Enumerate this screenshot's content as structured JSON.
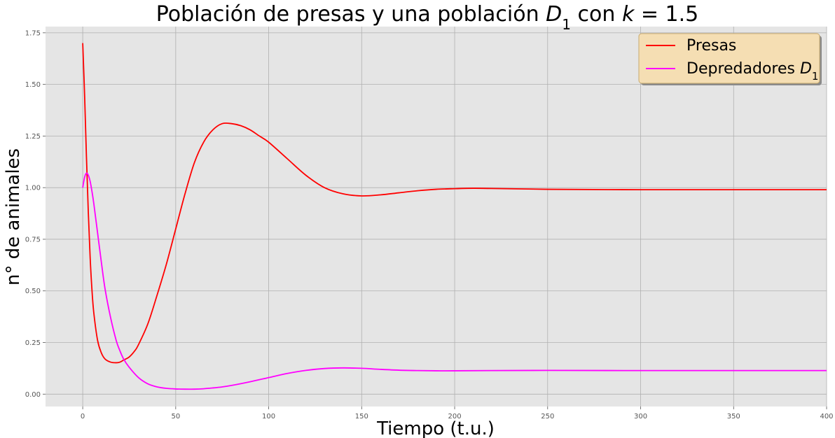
{
  "chart_data": {
    "type": "line",
    "title": {
      "prefix": "Población de presas y una población ",
      "var": "D",
      "sub": "1",
      "mid": " con ",
      "kvar": "k",
      "eq": " = 1.5"
    },
    "xlabel": "Tiempo (t.u.)",
    "ylabel": "n° de animales",
    "xlim": [
      -20,
      400
    ],
    "ylim": [
      -0.06,
      1.78
    ],
    "xticks": [
      "0",
      "50",
      "100",
      "150",
      "200",
      "250",
      "300",
      "350",
      "400"
    ],
    "yticks": [
      "0.00",
      "0.25",
      "0.50",
      "0.75",
      "1.00",
      "1.25",
      "1.50",
      "1.75"
    ],
    "grid": true,
    "background": "#e5e5e5",
    "legend": {
      "placement": "top-right",
      "background": "#f5deb3",
      "border": "#c8a96e"
    },
    "series": [
      {
        "name": "Presas",
        "name_sub": "",
        "color": "#ff0000",
        "x": [
          0,
          1,
          2,
          3,
          4,
          5,
          6,
          8,
          10,
          12,
          15,
          18,
          20,
          22,
          25,
          28,
          30,
          35,
          40,
          45,
          50,
          55,
          60,
          65,
          70,
          75,
          80,
          85,
          90,
          95,
          100,
          110,
          120,
          130,
          140,
          150,
          160,
          170,
          180,
          190,
          200,
          210,
          220,
          250,
          300,
          350,
          400
        ],
        "y": [
          1.7,
          1.45,
          1.15,
          0.88,
          0.66,
          0.5,
          0.39,
          0.26,
          0.2,
          0.17,
          0.155,
          0.152,
          0.155,
          0.165,
          0.18,
          0.21,
          0.24,
          0.34,
          0.48,
          0.63,
          0.8,
          0.97,
          1.12,
          1.22,
          1.28,
          1.31,
          1.31,
          1.3,
          1.28,
          1.25,
          1.22,
          1.14,
          1.06,
          1.0,
          0.97,
          0.96,
          0.965,
          0.975,
          0.985,
          0.992,
          0.995,
          0.997,
          0.996,
          0.992,
          0.99,
          0.99,
          0.99
        ]
      },
      {
        "name": "Depredadores ",
        "name_sub": "1",
        "name_var": "D",
        "color": "#ff00ff",
        "x": [
          0,
          1,
          2,
          3,
          4,
          5,
          6,
          8,
          10,
          12,
          15,
          18,
          20,
          22,
          25,
          30,
          35,
          40,
          45,
          50,
          55,
          60,
          65,
          70,
          75,
          80,
          90,
          100,
          110,
          120,
          130,
          140,
          150,
          160,
          170,
          180,
          190,
          200,
          220,
          250,
          300,
          350,
          400
        ],
        "y": [
          1.0,
          1.05,
          1.07,
          1.06,
          1.03,
          0.98,
          0.92,
          0.78,
          0.64,
          0.51,
          0.37,
          0.26,
          0.21,
          0.17,
          0.13,
          0.08,
          0.05,
          0.035,
          0.028,
          0.025,
          0.024,
          0.024,
          0.026,
          0.03,
          0.035,
          0.042,
          0.06,
          0.08,
          0.1,
          0.115,
          0.124,
          0.127,
          0.125,
          0.12,
          0.116,
          0.114,
          0.113,
          0.113,
          0.114,
          0.115,
          0.114,
          0.114,
          0.114
        ]
      }
    ]
  }
}
